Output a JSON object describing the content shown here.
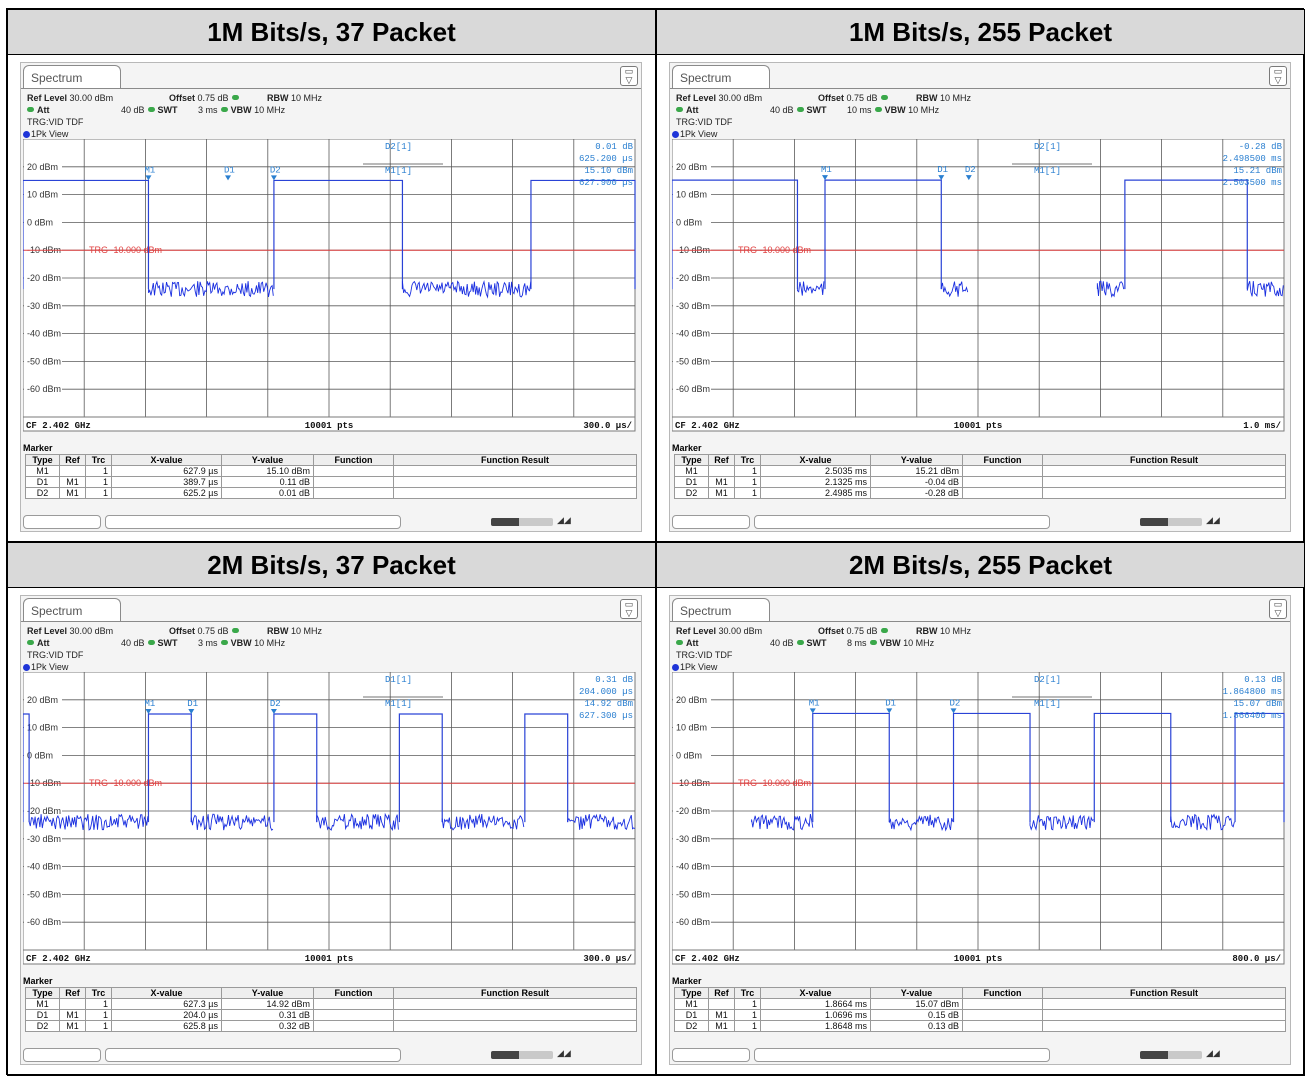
{
  "panels": [
    {
      "header": "1M Bits/s, 37 Packet",
      "tab": "Spectrum",
      "ref_level": "30.00 dBm",
      "offset": "0.75 dB",
      "rbw": "10 MHz",
      "att": "40 dB",
      "swt": "3 ms",
      "vbw": "10 MHz",
      "trg": "TRG:VID TDF",
      "view": "1Pk View",
      "cf": "CF 2.402 GHz",
      "pts": "10001 pts",
      "div": "300.0 µs/",
      "marker_readout": {
        "label1": "D2[1]",
        "val1": "0.01 dB",
        "val2": "625.200 µs",
        "label2": "M1[1]",
        "val3": "15.10 dBm",
        "val4": "627.900 µs"
      },
      "trg_label": "TRG -10.000 dBm",
      "table": [
        {
          "type": "M1",
          "ref": "",
          "trc": "1",
          "x": "627.9 µs",
          "y": "15.10 dBm"
        },
        {
          "type": "D1",
          "ref": "M1",
          "trc": "1",
          "x": "389.7 µs",
          "y": "0.11 dB"
        },
        {
          "type": "D2",
          "ref": "M1",
          "trc": "1",
          "x": "625.2 µs",
          "y": "0.01 dB"
        }
      ]
    },
    {
      "header": "1M Bits/s, 255 Packet",
      "tab": "Spectrum",
      "ref_level": "30.00 dBm",
      "offset": "0.75 dB",
      "rbw": "10 MHz",
      "att": "40 dB",
      "swt": "10 ms",
      "vbw": "10 MHz",
      "trg": "TRG:VID TDF",
      "view": "1Pk View",
      "cf": "CF 2.402 GHz",
      "pts": "10001 pts",
      "div": "1.0 ms/",
      "marker_readout": {
        "label1": "D2[1]",
        "val1": "-0.28 dB",
        "val2": "2.498500 ms",
        "label2": "M1[1]",
        "val3": "15.21 dBm",
        "val4": "2.503500 ms"
      },
      "trg_label": "TRG -10.000 dBm",
      "table": [
        {
          "type": "M1",
          "ref": "",
          "trc": "1",
          "x": "2.5035 ms",
          "y": "15.21 dBm"
        },
        {
          "type": "D1",
          "ref": "M1",
          "trc": "1",
          "x": "2.1325 ms",
          "y": "-0.04 dB"
        },
        {
          "type": "D2",
          "ref": "M1",
          "trc": "1",
          "x": "2.4985 ms",
          "y": "-0.28 dB"
        }
      ]
    },
    {
      "header": "2M Bits/s, 37 Packet",
      "tab": "Spectrum",
      "ref_level": "30.00 dBm",
      "offset": "0.75 dB",
      "rbw": "10 MHz",
      "att": "40 dB",
      "swt": "3 ms",
      "vbw": "10 MHz",
      "trg": "TRG:VID TDF",
      "view": "1Pk View",
      "cf": "CF 2.402 GHz",
      "pts": "10001 pts",
      "div": "300.0 µs/",
      "marker_readout": {
        "label1": "D1[1]",
        "val1": "0.31 dB",
        "val2": "204.000 µs",
        "label2": "M1[1]",
        "val3": "14.92 dBm",
        "val4": "627.300 µs"
      },
      "trg_label": "TRG -10.000 dBm",
      "table": [
        {
          "type": "M1",
          "ref": "",
          "trc": "1",
          "x": "627.3 µs",
          "y": "14.92 dBm"
        },
        {
          "type": "D1",
          "ref": "M1",
          "trc": "1",
          "x": "204.0 µs",
          "y": "0.31 dB"
        },
        {
          "type": "D2",
          "ref": "M1",
          "trc": "1",
          "x": "625.8 µs",
          "y": "0.32 dB"
        }
      ]
    },
    {
      "header": "2M Bits/s, 255 Packet",
      "tab": "Spectrum",
      "ref_level": "30.00 dBm",
      "offset": "0.75 dB",
      "rbw": "10 MHz",
      "att": "40 dB",
      "swt": "8 ms",
      "vbw": "10 MHz",
      "trg": "TRG:VID TDF",
      "view": "1Pk View",
      "cf": "CF 2.402 GHz",
      "pts": "10001 pts",
      "div": "800.0 µs/",
      "marker_readout": {
        "label1": "D2[1]",
        "val1": "0.13 dB",
        "val2": "1.864800 ms",
        "label2": "M1[1]",
        "val3": "15.07 dBm",
        "val4": "1.866400 ms"
      },
      "trg_label": "TRG -10.000 dBm",
      "table": [
        {
          "type": "M1",
          "ref": "",
          "trc": "1",
          "x": "1.8664 ms",
          "y": "15.07 dBm"
        },
        {
          "type": "D1",
          "ref": "M1",
          "trc": "1",
          "x": "1.0696 ms",
          "y": "0.15 dB"
        },
        {
          "type": "D2",
          "ref": "M1",
          "trc": "1",
          "x": "1.8648 ms",
          "y": "0.13 dB"
        }
      ]
    }
  ],
  "labels": {
    "ref_level": "Ref Level",
    "offset": "Offset",
    "rbw": "RBW",
    "att": "Att",
    "swt": "SWT",
    "vbw": "VBW",
    "marker": "Marker",
    "type": "Type",
    "ref": "Ref",
    "trc": "Trc",
    "xvalue": "X-value",
    "yvalue": "Y-value",
    "function": "Function",
    "function_result": "Function Result"
  },
  "chart_data": [
    {
      "type": "line",
      "x_range_divisions": 10,
      "ylim": [
        -70,
        30
      ],
      "y_ticks": [
        "20 dBm",
        "10 dBm",
        "0 dBm",
        "-10 dBm",
        "-20 dBm",
        "-30 dBm",
        "-40 dBm",
        "-50 dBm",
        "-60 dBm"
      ],
      "trigger_level_dbm": -10,
      "high_level_dbm": 15.1,
      "low_level_dbm": -24,
      "high_segments_div": [
        [
          0,
          2.05
        ],
        [
          4.1,
          6.2
        ],
        [
          8.3,
          10
        ]
      ],
      "low_segments_div": [
        [
          2.05,
          4.1
        ],
        [
          6.2,
          8.3
        ]
      ],
      "markers": [
        {
          "name": "M1",
          "x_div": 2.05
        },
        {
          "name": "D1",
          "x_div": 3.35
        },
        {
          "name": "D2",
          "x_div": 4.1
        }
      ]
    },
    {
      "type": "line",
      "x_range_divisions": 10,
      "ylim": [
        -70,
        30
      ],
      "y_ticks": [
        "20 dBm",
        "10 dBm",
        "0 dBm",
        "-10 dBm",
        "-20 dBm",
        "-30 dBm",
        "-40 dBm",
        "-50 dBm",
        "-60 dBm"
      ],
      "trigger_level_dbm": -10,
      "high_level_dbm": 15.2,
      "low_level_dbm": -24,
      "high_segments_div": [
        [
          0,
          2.05
        ],
        [
          2.5,
          4.4
        ],
        [
          7.4,
          9.4
        ]
      ],
      "low_segments_div": [
        [
          2.05,
          2.5
        ],
        [
          4.4,
          4.85
        ],
        [
          6.95,
          7.4
        ],
        [
          9.4,
          10
        ]
      ],
      "markers": [
        {
          "name": "M1",
          "x_div": 2.5
        },
        {
          "name": "D1",
          "x_div": 4.4
        },
        {
          "name": "D2",
          "x_div": 4.85
        }
      ]
    },
    {
      "type": "line",
      "x_range_divisions": 10,
      "ylim": [
        -70,
        30
      ],
      "y_ticks": [
        "20 dBm",
        "10 dBm",
        "0 dBm",
        "-10 dBm",
        "-20 dBm",
        "-30 dBm",
        "-40 dBm",
        "-50 dBm",
        "-60 dBm"
      ],
      "trigger_level_dbm": -10,
      "high_level_dbm": 14.9,
      "low_level_dbm": -24,
      "high_segments_div": [
        [
          0,
          0.1
        ],
        [
          2.05,
          2.75
        ],
        [
          4.1,
          4.8
        ],
        [
          6.15,
          6.85
        ],
        [
          8.2,
          8.9
        ]
      ],
      "low_segments_div": [
        [
          0.1,
          2.05
        ],
        [
          2.75,
          4.1
        ],
        [
          4.8,
          6.15
        ],
        [
          6.85,
          8.2
        ],
        [
          8.9,
          10
        ]
      ],
      "markers": [
        {
          "name": "M1",
          "x_div": 2.05
        },
        {
          "name": "D1",
          "x_div": 2.75
        },
        {
          "name": "D2",
          "x_div": 4.1
        }
      ]
    },
    {
      "type": "line",
      "x_range_divisions": 10,
      "ylim": [
        -70,
        30
      ],
      "y_ticks": [
        "20 dBm",
        "10 dBm",
        "0 dBm",
        "-10 dBm",
        "-20 dBm",
        "-30 dBm",
        "-40 dBm",
        "-50 dBm",
        "-60 dBm"
      ],
      "trigger_level_dbm": -10,
      "high_level_dbm": 15.1,
      "low_level_dbm": -24,
      "high_segments_div": [
        [
          2.3,
          3.55
        ],
        [
          4.6,
          5.85
        ],
        [
          6.9,
          8.15
        ],
        [
          9.2,
          10
        ]
      ],
      "low_segments_div": [
        [
          1.3,
          2.3
        ],
        [
          3.55,
          4.6
        ],
        [
          5.85,
          6.9
        ],
        [
          8.15,
          9.2
        ]
      ],
      "markers": [
        {
          "name": "M1",
          "x_div": 2.3
        },
        {
          "name": "D1",
          "x_div": 3.55
        },
        {
          "name": "D2",
          "x_div": 4.6
        }
      ]
    }
  ]
}
